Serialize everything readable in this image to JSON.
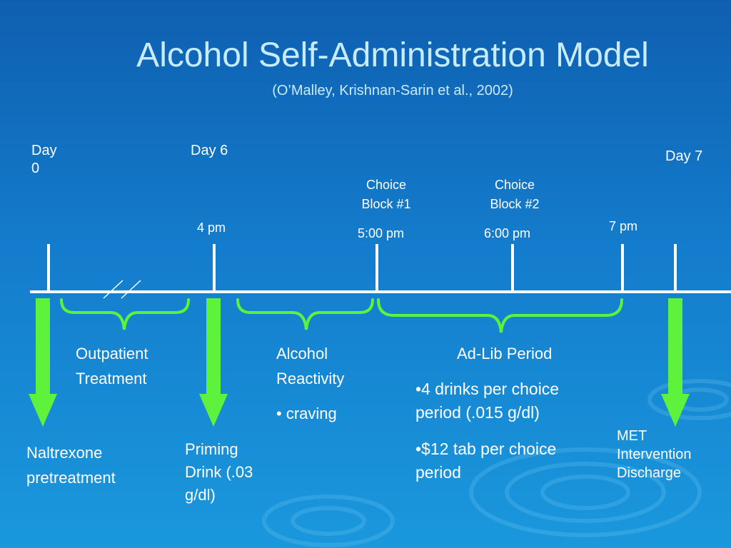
{
  "title": "Alcohol Self-Administration Model",
  "subtitle": "(O’Malley, Krishnan-Sarin et al., 2002)",
  "timeline": {
    "day0": "Day 0",
    "day6": "Day 6",
    "day7": "Day 7",
    "time_4pm": "4 pm",
    "choice1": "Choice Block #1",
    "choice1_time": "5:00 pm",
    "choice2": "Choice Block #2",
    "choice2_time": "6:00 pm",
    "time_7pm": "7 pm"
  },
  "phases": {
    "outpatient": "Outpatient Treatment",
    "reactivity_title": "Alcohol Reactivity",
    "reactivity_bullet": "• craving",
    "adlib_title": "Ad-Lib Period",
    "adlib_bullet1": "•4 drinks per choice period (.015 g/dl)",
    "adlib_bullet2": "•$12 tab per choice period"
  },
  "events": {
    "naltrexone": "Naltrexone pretreatment",
    "priming": "Priming Drink (.03 g/dl)",
    "met": "MET Intervention Discharge"
  },
  "colors": {
    "arrow": "#5ef23c",
    "brace": "#5ef23c",
    "axis": "#ffffff",
    "title": "#c8ecff"
  }
}
